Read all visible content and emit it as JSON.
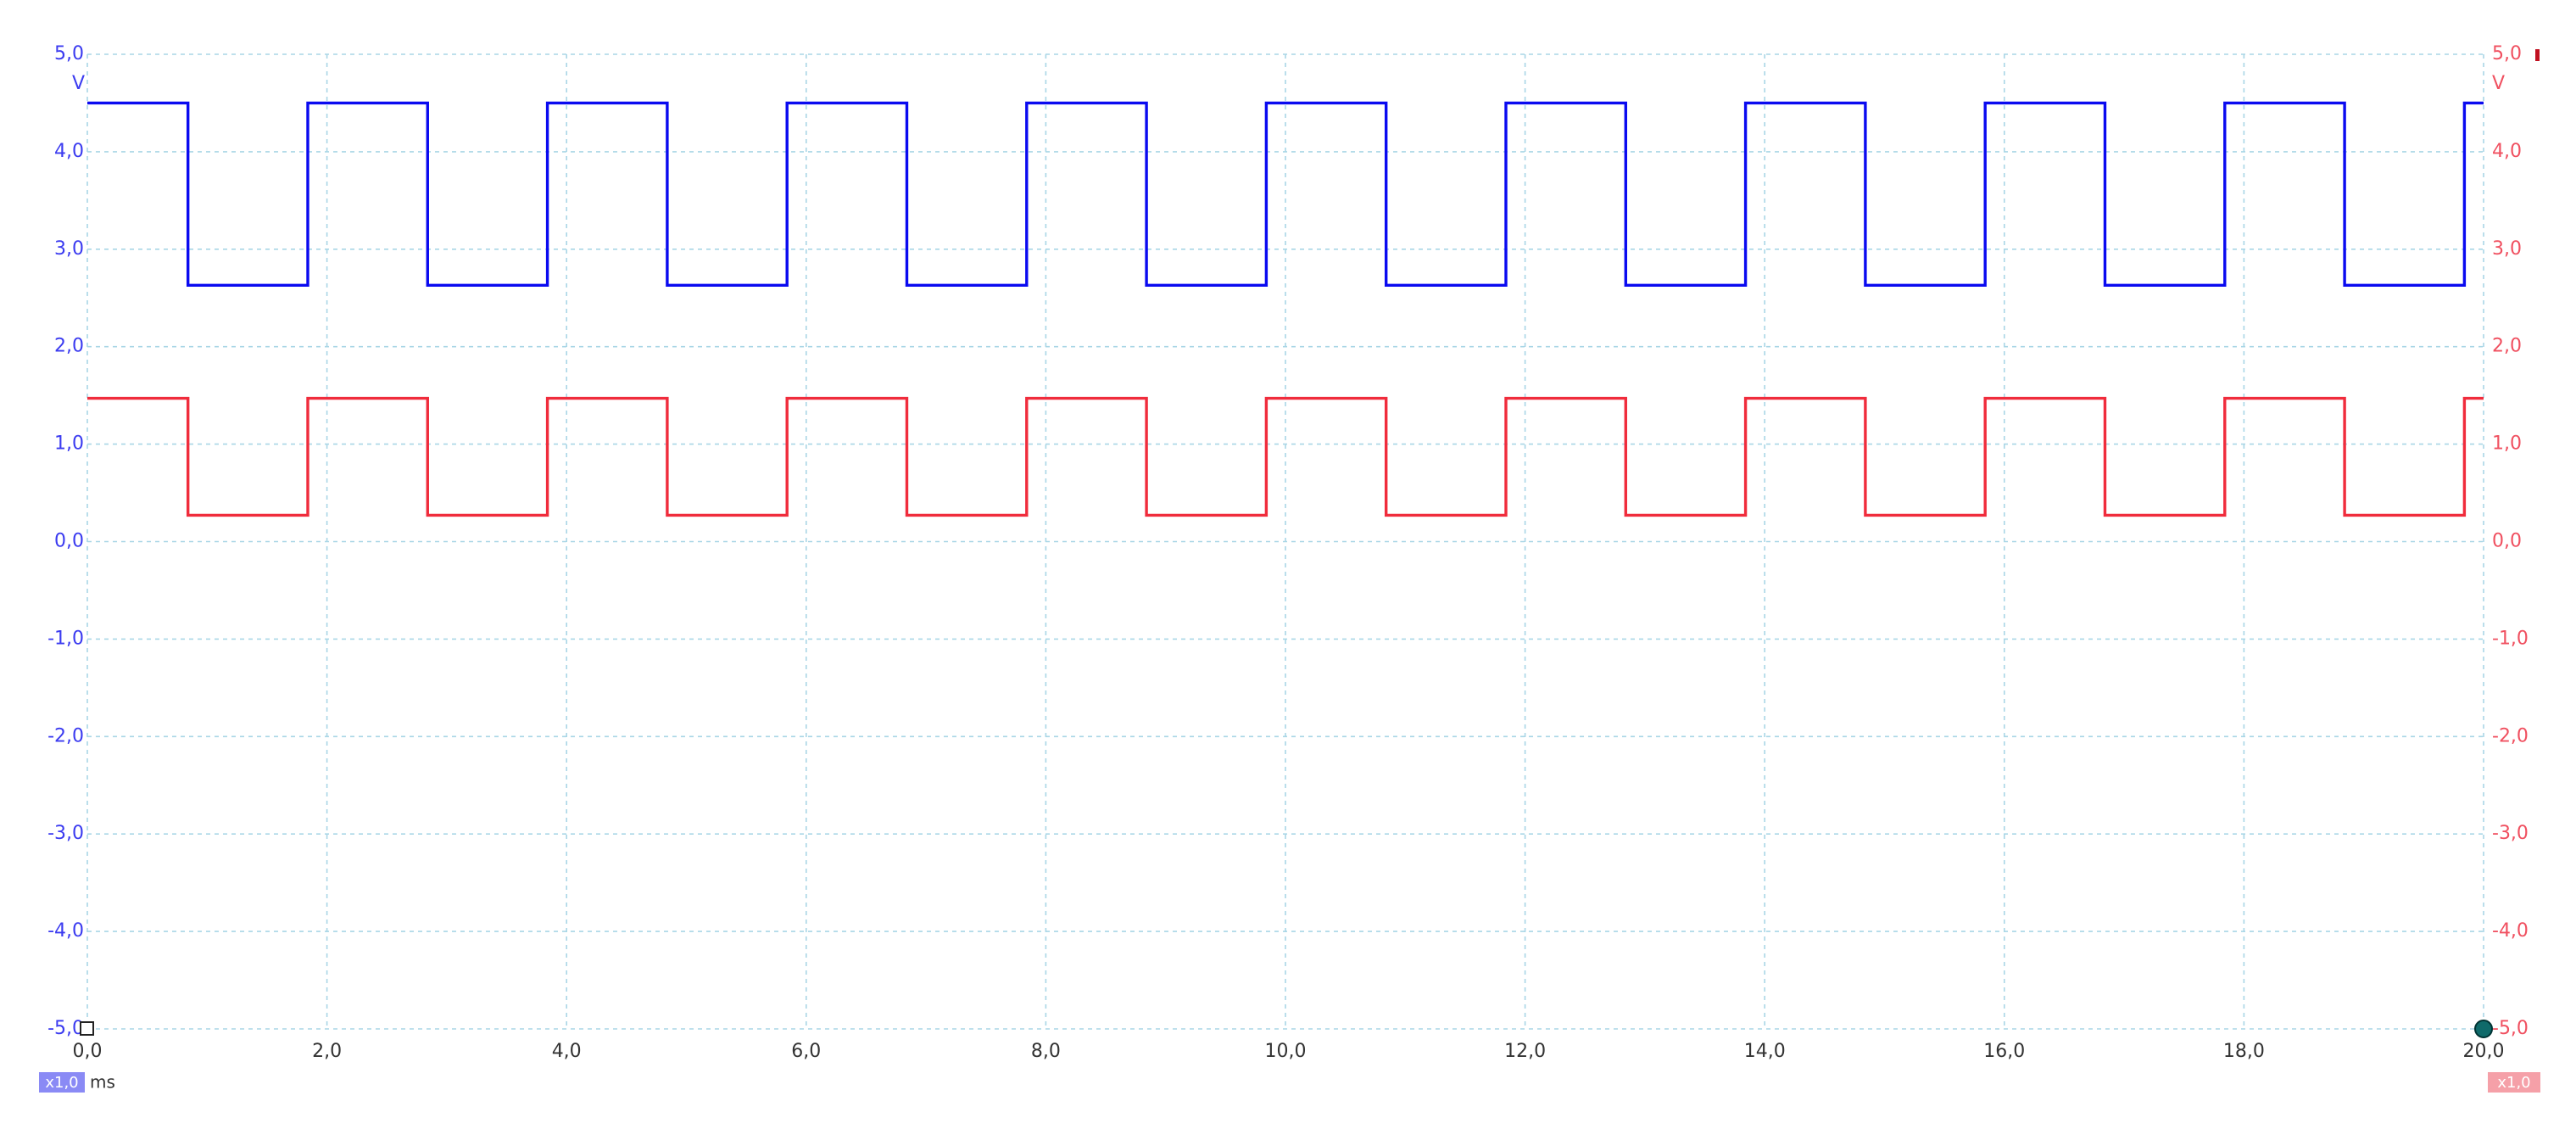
{
  "chart_data": {
    "type": "line",
    "x_unit": "ms",
    "y_unit": "V",
    "y2_unit": "V",
    "x_scale_badge": "x1,0",
    "y2_scale_badge": "x1,0",
    "grid": true,
    "xlim": [
      0,
      20
    ],
    "xticks": [
      {
        "value": 0,
        "label": "0,0"
      },
      {
        "value": 2,
        "label": "2,0"
      },
      {
        "value": 4,
        "label": "4,0"
      },
      {
        "value": 6,
        "label": "6,0"
      },
      {
        "value": 8,
        "label": "8,0"
      },
      {
        "value": 10,
        "label": "10,0"
      },
      {
        "value": 12,
        "label": "12,0"
      },
      {
        "value": 14,
        "label": "14,0"
      },
      {
        "value": 16,
        "label": "16,0"
      },
      {
        "value": 18,
        "label": "18,0"
      },
      {
        "value": 20,
        "label": "20,0"
      }
    ],
    "ylim": [
      -5,
      5
    ],
    "yticks": [
      {
        "value": 5,
        "label": "5,0"
      },
      {
        "value": 4,
        "label": "4,0"
      },
      {
        "value": 3,
        "label": "3,0"
      },
      {
        "value": 2,
        "label": "2,0"
      },
      {
        "value": 1,
        "label": "1,0"
      },
      {
        "value": 0,
        "label": "0,0"
      },
      {
        "value": -1,
        "label": "-1,0"
      },
      {
        "value": -2,
        "label": "-2,0"
      },
      {
        "value": -3,
        "label": "-3,0"
      },
      {
        "value": -4,
        "label": "-4,0"
      },
      {
        "value": -5,
        "label": "-5,0"
      }
    ],
    "y2lim": [
      -5,
      5
    ],
    "y2ticks": [
      {
        "value": 5,
        "label": "5,0"
      },
      {
        "value": 4,
        "label": "4,0"
      },
      {
        "value": 3,
        "label": "3,0"
      },
      {
        "value": 2,
        "label": "2,0"
      },
      {
        "value": 1,
        "label": "1,0"
      },
      {
        "value": 0,
        "label": "0,0"
      },
      {
        "value": -1,
        "label": "-1,0"
      },
      {
        "value": -2,
        "label": "-2,0"
      },
      {
        "value": -3,
        "label": "-3,0"
      },
      {
        "value": -4,
        "label": "-4,0"
      },
      {
        "value": -5,
        "label": "-5,0"
      }
    ],
    "x": [
      0,
      0.84,
      0.84,
      1.84,
      1.84,
      2.84,
      2.84,
      3.84,
      3.84,
      4.84,
      4.84,
      5.84,
      5.84,
      6.84,
      6.84,
      7.84,
      7.84,
      8.84,
      8.84,
      9.84,
      9.84,
      10.84,
      10.84,
      11.84,
      11.84,
      12.84,
      12.84,
      13.84,
      13.84,
      14.84,
      14.84,
      15.84,
      15.84,
      16.84,
      16.84,
      17.84,
      17.84,
      18.84,
      18.84,
      19.84,
      19.84,
      20
    ],
    "series": [
      {
        "color": "#0a0af0",
        "axis": "y",
        "values": [
          4.5,
          4.5,
          2.63,
          2.63,
          4.5,
          4.5,
          2.63,
          2.63,
          4.5,
          4.5,
          2.63,
          2.63,
          4.5,
          4.5,
          2.63,
          2.63,
          4.5,
          4.5,
          2.63,
          2.63,
          4.5,
          4.5,
          2.63,
          2.63,
          4.5,
          4.5,
          2.63,
          2.63,
          4.5,
          4.5,
          2.63,
          2.63,
          4.5,
          4.5,
          2.63,
          2.63,
          4.5,
          4.5,
          2.63,
          2.63,
          4.5,
          4.5
        ]
      },
      {
        "color": "#f02c3c",
        "axis": "y2",
        "values": [
          1.47,
          1.47,
          0.27,
          0.27,
          1.47,
          1.47,
          0.27,
          0.27,
          1.47,
          1.47,
          0.27,
          0.27,
          1.47,
          1.47,
          0.27,
          0.27,
          1.47,
          1.47,
          0.27,
          0.27,
          1.47,
          1.47,
          0.27,
          0.27,
          1.47,
          1.47,
          0.27,
          0.27,
          1.47,
          1.47,
          0.27,
          0.27,
          1.47,
          1.47,
          0.27,
          0.27,
          1.47,
          1.47,
          0.27,
          0.27,
          1.47,
          1.47
        ]
      }
    ]
  }
}
